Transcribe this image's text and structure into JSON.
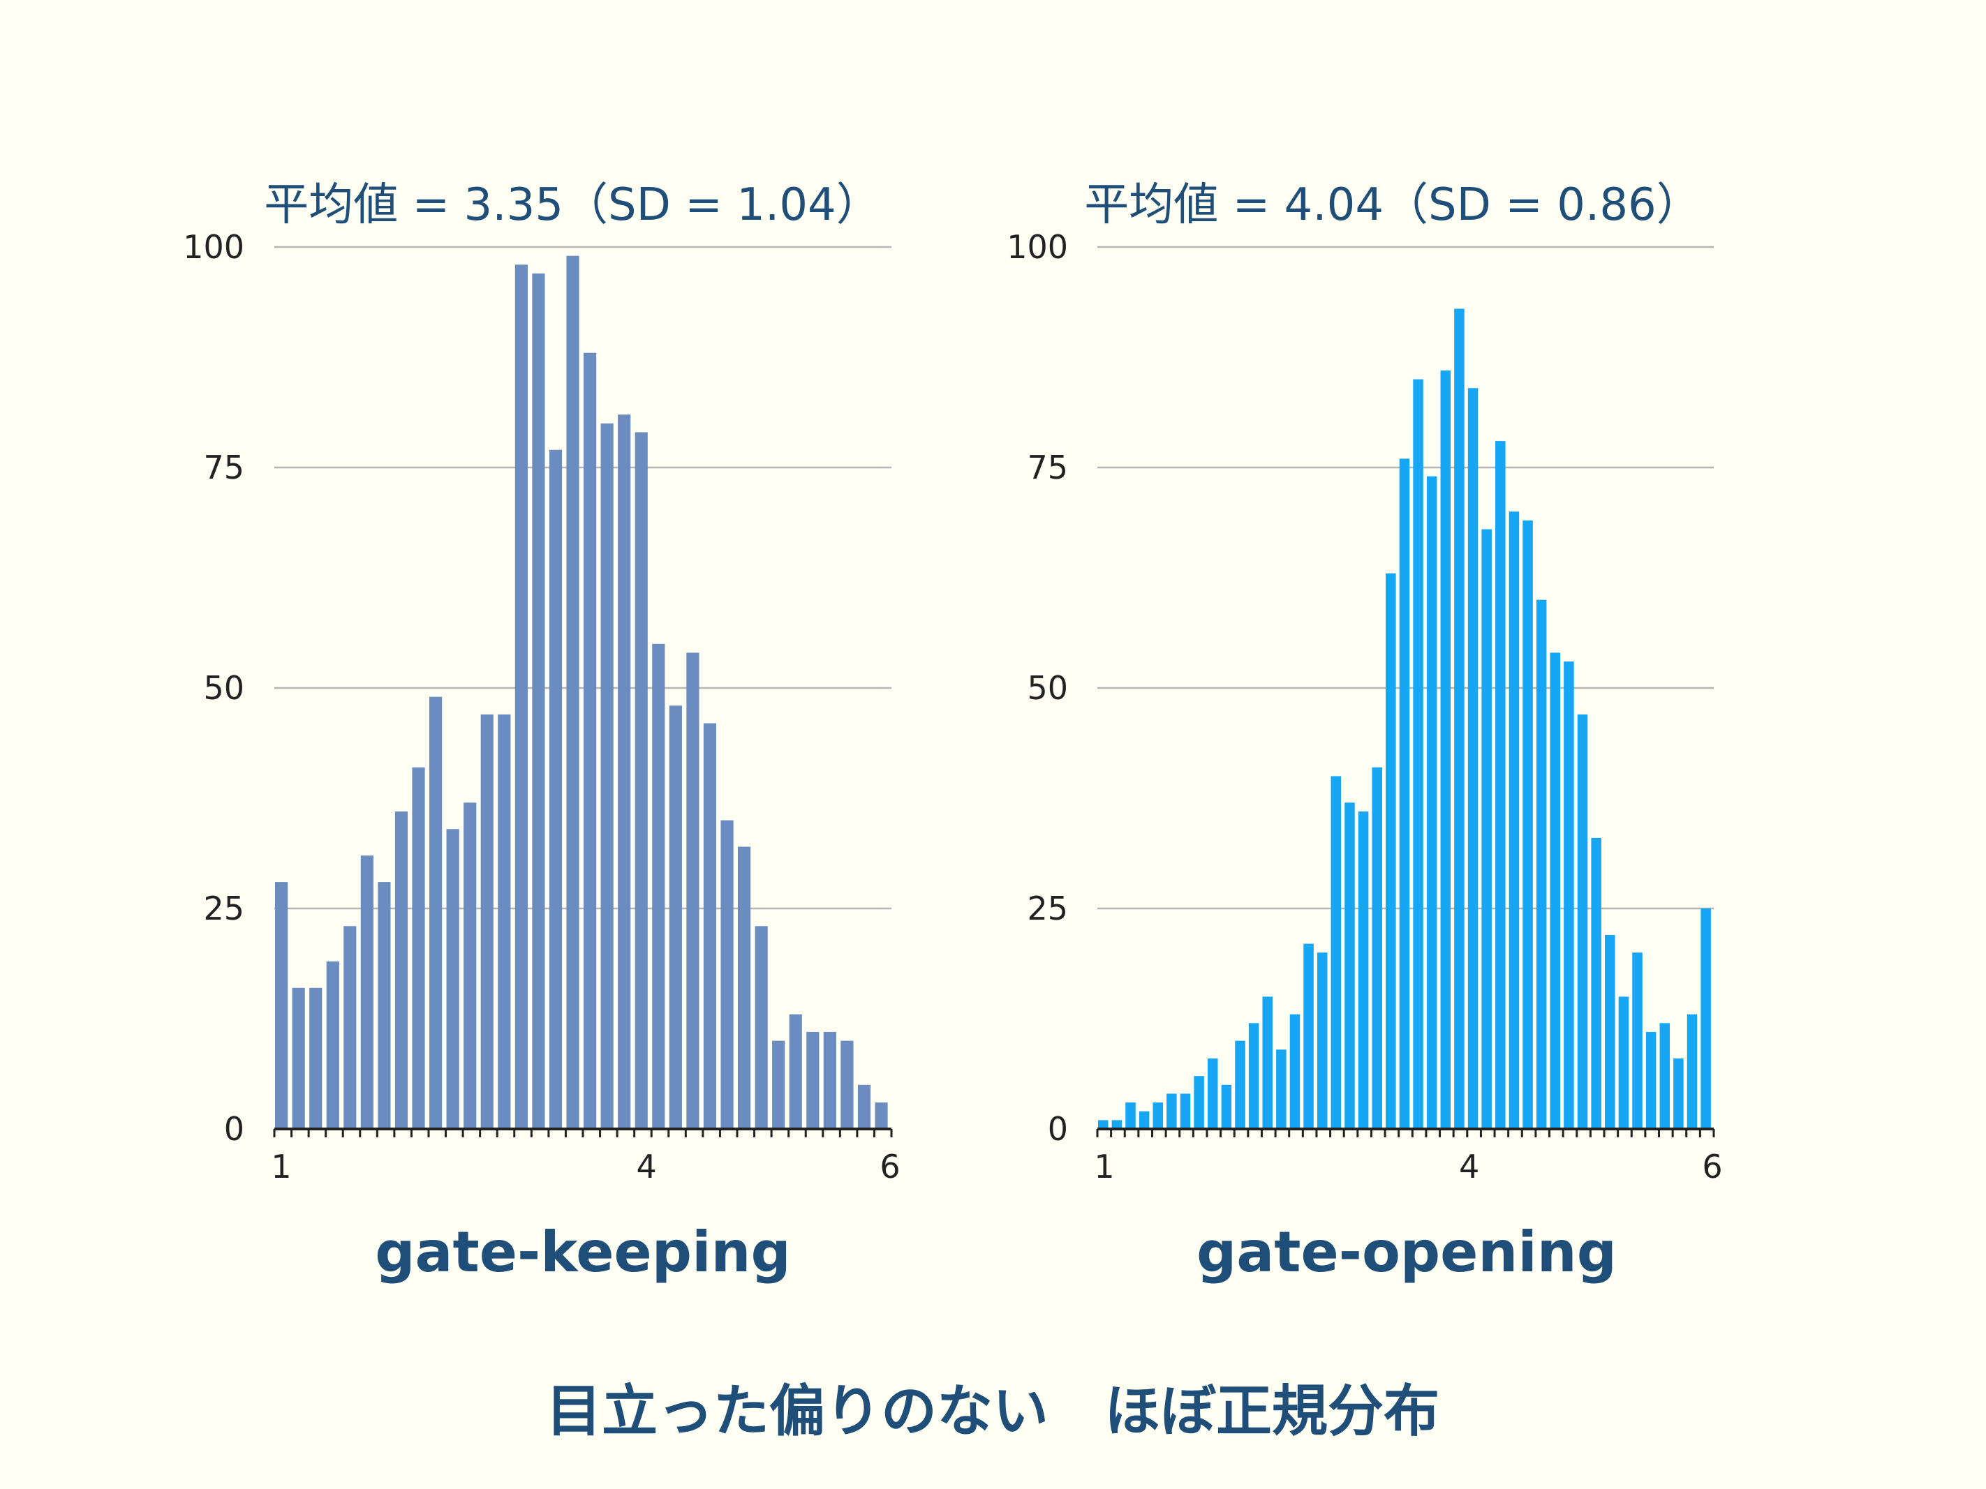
{
  "slide": {
    "caption": "目立った偏りのない　ほぼ正規分布",
    "text_color": "#1F4E79",
    "background": "#FFFFF4"
  },
  "chart_data": [
    {
      "type": "bar",
      "title": "平均値 = 3.35（SD = 1.04）",
      "xlabel": "gate-keeping",
      "ylabel": "",
      "color": "#6A8CBE",
      "ylim": [
        0,
        100
      ],
      "yticks": [
        0,
        25,
        50,
        75,
        100
      ],
      "xticks": [
        1,
        4,
        6
      ],
      "xlim": [
        1,
        6
      ],
      "grid": true,
      "values": [
        28,
        16,
        16,
        19,
        23,
        31,
        28,
        36,
        41,
        49,
        34,
        37,
        47,
        47,
        98,
        97,
        77,
        99,
        88,
        80,
        81,
        79,
        55,
        48,
        54,
        46,
        35,
        32,
        23,
        10,
        13,
        11,
        11,
        10,
        5,
        3
      ]
    },
    {
      "type": "bar",
      "title": "平均値 = 4.04（SD = 0.86）",
      "xlabel": "gate-opening",
      "ylabel": "",
      "color": "#16A6F4",
      "ylim": [
        0,
        100
      ],
      "yticks": [
        0,
        25,
        50,
        75,
        100
      ],
      "xticks": [
        1,
        4,
        6
      ],
      "xlim": [
        1,
        6
      ],
      "grid": true,
      "values": [
        1,
        1,
        3,
        2,
        3,
        4,
        4,
        6,
        8,
        5,
        10,
        12,
        15,
        9,
        13,
        21,
        20,
        40,
        37,
        36,
        41,
        63,
        76,
        85,
        74,
        86,
        93,
        84,
        68,
        78,
        70,
        69,
        60,
        54,
        53,
        47,
        33,
        22,
        15,
        20,
        11,
        12,
        8,
        13,
        25
      ]
    }
  ]
}
